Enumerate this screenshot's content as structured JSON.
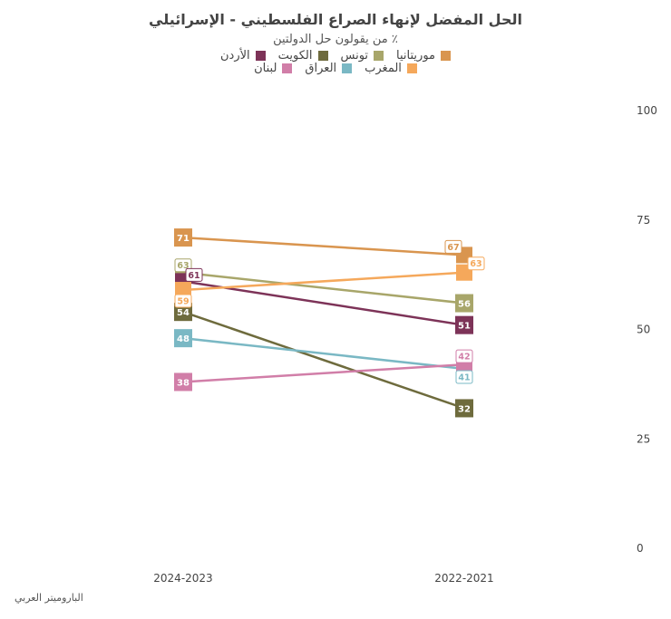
{
  "chart_data": {
    "type": "line",
    "title": "الحل المفضل لإنهاء الصراع الفلسطيني - الإسرائيلي",
    "subtitle": "٪ من يقولون حل الدولتين",
    "x": [
      "2024-2023",
      "2022-2021"
    ],
    "ylim": [
      0,
      100
    ],
    "yticks": [
      0,
      25,
      50,
      75,
      100
    ],
    "grid": false,
    "legend_position": "top",
    "series": [
      {
        "name": "موريتانيا",
        "values": [
          71,
          67
        ],
        "color": "#d9954f"
      },
      {
        "name": "تونس",
        "values": [
          63,
          56
        ],
        "color": "#a8a66a"
      },
      {
        "name": "الكويت",
        "values": [
          54,
          32
        ],
        "color": "#6e6b3d"
      },
      {
        "name": "الأردن",
        "values": [
          61,
          51
        ],
        "color": "#7d3358"
      },
      {
        "name": "المغرب",
        "values": [
          59,
          63
        ],
        "color": "#f5a85b"
      },
      {
        "name": "العراق",
        "values": [
          48,
          41
        ],
        "color": "#7ab8c4"
      },
      {
        "name": "لبنان",
        "values": [
          38,
          42
        ],
        "color": "#d17ea8"
      }
    ]
  },
  "source": "الباروميتر العربي"
}
